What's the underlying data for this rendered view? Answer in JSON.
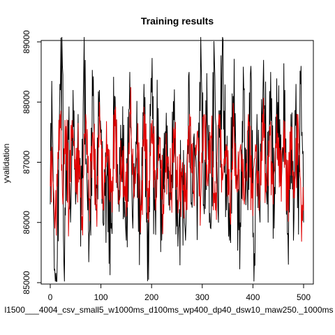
{
  "chart_data": {
    "type": "line",
    "title": "Training results",
    "xlabel": "l1500___4004_csv_small5_w1000ms_d100ms_wp400_dp40_dsw10_maw250._1000ms",
    "ylabel": "yvalidation",
    "xlim": [
      0,
      500
    ],
    "ylim": [
      85000,
      89000
    ],
    "x_ticks": [
      "0",
      "100",
      "200",
      "300",
      "400",
      "500"
    ],
    "y_ticks": [
      "85000",
      "86000",
      "87000",
      "88000",
      "89000"
    ],
    "n_points": 501,
    "grid": false,
    "legend": "none",
    "series": [
      {
        "color": "#000000",
        "sampled": [
          {
            "x": 0,
            "y": 86300
          },
          {
            "x": 3,
            "y": 88350
          },
          {
            "x": 8,
            "y": 85200
          },
          {
            "x": 13,
            "y": 85000
          },
          {
            "x": 19,
            "y": 88300
          },
          {
            "x": 24,
            "y": 88600
          },
          {
            "x": 27,
            "y": 85300
          },
          {
            "x": 35,
            "y": 87700
          },
          {
            "x": 40,
            "y": 86000
          },
          {
            "x": 45,
            "y": 88200
          },
          {
            "x": 50,
            "y": 86300
          },
          {
            "x": 55,
            "y": 87800
          },
          {
            "x": 60,
            "y": 85600
          },
          {
            "x": 66,
            "y": 88500
          },
          {
            "x": 72,
            "y": 86900
          },
          {
            "x": 77,
            "y": 85800
          },
          {
            "x": 84,
            "y": 88100
          },
          {
            "x": 90,
            "y": 86200
          },
          {
            "x": 97,
            "y": 88200
          },
          {
            "x": 104,
            "y": 86000
          },
          {
            "x": 112,
            "y": 86800
          },
          {
            "x": 120,
            "y": 85900
          },
          {
            "x": 127,
            "y": 88100
          },
          {
            "x": 134,
            "y": 86300
          },
          {
            "x": 141,
            "y": 87400
          },
          {
            "x": 150,
            "y": 85700
          },
          {
            "x": 157,
            "y": 88500
          },
          {
            "x": 163,
            "y": 85900
          },
          {
            "x": 170,
            "y": 87300
          },
          {
            "x": 178,
            "y": 85800
          },
          {
            "x": 185,
            "y": 88300
          },
          {
            "x": 190,
            "y": 86000
          },
          {
            "x": 194,
            "y": 85050
          },
          {
            "x": 199,
            "y": 88400
          },
          {
            "x": 206,
            "y": 86200
          },
          {
            "x": 213,
            "y": 87900
          },
          {
            "x": 220,
            "y": 85700
          },
          {
            "x": 228,
            "y": 87300
          },
          {
            "x": 236,
            "y": 86200
          },
          {
            "x": 244,
            "y": 87700
          },
          {
            "x": 252,
            "y": 85600
          },
          {
            "x": 260,
            "y": 86900
          },
          {
            "x": 267,
            "y": 85700
          },
          {
            "x": 274,
            "y": 88500
          },
          {
            "x": 278,
            "y": 86300
          },
          {
            "x": 283,
            "y": 87400
          },
          {
            "x": 291,
            "y": 86500
          },
          {
            "x": 298,
            "y": 88600
          },
          {
            "x": 303,
            "y": 86300
          },
          {
            "x": 310,
            "y": 87700
          },
          {
            "x": 317,
            "y": 85900
          },
          {
            "x": 324,
            "y": 88700
          },
          {
            "x": 331,
            "y": 86200
          },
          {
            "x": 340,
            "y": 89100
          },
          {
            "x": 347,
            "y": 86800
          },
          {
            "x": 354,
            "y": 85700
          },
          {
            "x": 361,
            "y": 88100
          },
          {
            "x": 368,
            "y": 86700
          },
          {
            "x": 375,
            "y": 86000
          },
          {
            "x": 382,
            "y": 88200
          },
          {
            "x": 389,
            "y": 86500
          },
          {
            "x": 396,
            "y": 88600
          },
          {
            "x": 402,
            "y": 85000
          },
          {
            "x": 408,
            "y": 87800
          },
          {
            "x": 414,
            "y": 86000
          },
          {
            "x": 421,
            "y": 88700
          },
          {
            "x": 428,
            "y": 86300
          },
          {
            "x": 435,
            "y": 88500
          },
          {
            "x": 442,
            "y": 85900
          },
          {
            "x": 449,
            "y": 88000
          },
          {
            "x": 456,
            "y": 86600
          },
          {
            "x": 463,
            "y": 88200
          },
          {
            "x": 470,
            "y": 85300
          },
          {
            "x": 475,
            "y": 87800
          },
          {
            "x": 480,
            "y": 85700
          },
          {
            "x": 485,
            "y": 88300
          },
          {
            "x": 490,
            "y": 85800
          },
          {
            "x": 495,
            "y": 88600
          },
          {
            "x": 500,
            "y": 86000
          }
        ]
      },
      {
        "color": "#e00000",
        "sampled": [
          {
            "x": 0,
            "y": 86600
          },
          {
            "x": 4,
            "y": 87100
          },
          {
            "x": 9,
            "y": 85900
          },
          {
            "x": 14,
            "y": 86600
          },
          {
            "x": 19,
            "y": 87800
          },
          {
            "x": 25,
            "y": 86300
          },
          {
            "x": 31,
            "y": 87600
          },
          {
            "x": 37,
            "y": 86200
          },
          {
            "x": 43,
            "y": 87700
          },
          {
            "x": 50,
            "y": 86500
          },
          {
            "x": 57,
            "y": 87200
          },
          {
            "x": 63,
            "y": 86100
          },
          {
            "x": 70,
            "y": 87800
          },
          {
            "x": 77,
            "y": 86400
          },
          {
            "x": 84,
            "y": 87500
          },
          {
            "x": 91,
            "y": 86300
          },
          {
            "x": 98,
            "y": 87700
          },
          {
            "x": 105,
            "y": 86200
          },
          {
            "x": 113,
            "y": 87300
          },
          {
            "x": 120,
            "y": 86500
          },
          {
            "x": 128,
            "y": 87600
          },
          {
            "x": 135,
            "y": 86300
          },
          {
            "x": 143,
            "y": 87200
          },
          {
            "x": 150,
            "y": 86100
          },
          {
            "x": 158,
            "y": 87800
          },
          {
            "x": 165,
            "y": 86400
          },
          {
            "x": 172,
            "y": 87300
          },
          {
            "x": 180,
            "y": 86200
          },
          {
            "x": 187,
            "y": 87800
          },
          {
            "x": 194,
            "y": 86000
          },
          {
            "x": 201,
            "y": 87700
          },
          {
            "x": 209,
            "y": 86400
          },
          {
            "x": 216,
            "y": 87400
          },
          {
            "x": 223,
            "y": 86300
          },
          {
            "x": 231,
            "y": 87100
          },
          {
            "x": 238,
            "y": 86500
          },
          {
            "x": 246,
            "y": 87400
          },
          {
            "x": 253,
            "y": 86300
          },
          {
            "x": 261,
            "y": 87000
          },
          {
            "x": 268,
            "y": 86200
          },
          {
            "x": 275,
            "y": 87800
          },
          {
            "x": 282,
            "y": 86500
          },
          {
            "x": 290,
            "y": 87500
          },
          {
            "x": 297,
            "y": 86400
          },
          {
            "x": 304,
            "y": 87800
          },
          {
            "x": 311,
            "y": 86600
          },
          {
            "x": 318,
            "y": 87400
          },
          {
            "x": 326,
            "y": 86200
          },
          {
            "x": 333,
            "y": 87800
          },
          {
            "x": 340,
            "y": 86700
          },
          {
            "x": 347,
            "y": 87300
          },
          {
            "x": 355,
            "y": 86100
          },
          {
            "x": 362,
            "y": 87800
          },
          {
            "x": 369,
            "y": 86500
          },
          {
            "x": 376,
            "y": 87300
          },
          {
            "x": 383,
            "y": 86300
          },
          {
            "x": 391,
            "y": 87800
          },
          {
            "x": 398,
            "y": 86400
          },
          {
            "x": 405,
            "y": 87300
          },
          {
            "x": 412,
            "y": 86200
          },
          {
            "x": 419,
            "y": 87800
          },
          {
            "x": 426,
            "y": 86500
          },
          {
            "x": 433,
            "y": 87600
          },
          {
            "x": 440,
            "y": 86300
          },
          {
            "x": 447,
            "y": 87800
          },
          {
            "x": 454,
            "y": 86600
          },
          {
            "x": 461,
            "y": 87700
          },
          {
            "x": 468,
            "y": 86200
          },
          {
            "x": 475,
            "y": 87600
          },
          {
            "x": 482,
            "y": 86400
          },
          {
            "x": 489,
            "y": 87800
          },
          {
            "x": 495,
            "y": 86300
          },
          {
            "x": 500,
            "y": 86200
          }
        ]
      }
    ]
  }
}
